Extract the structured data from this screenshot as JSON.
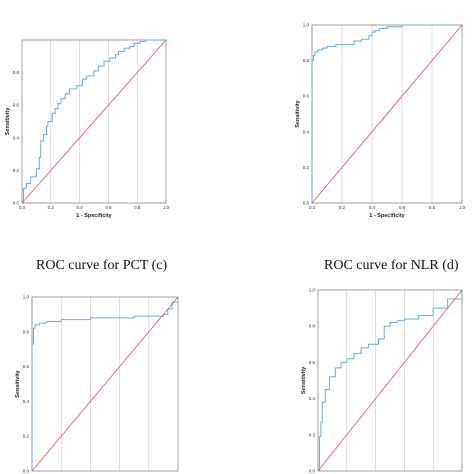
{
  "captions": {
    "c": "ROC curve for PCT (c)",
    "d": "ROC curve for NLR (d)"
  },
  "colors": {
    "roc_line": "#6fa8dc",
    "reference_line": "#e0606e",
    "frame": "#888888",
    "grid": "#c8c8c8"
  },
  "chart_data": [
    {
      "type": "line",
      "panel": "top-left",
      "xlabel": "1 - Specificity",
      "ylabel": "Sensitivity",
      "xlim": [
        0,
        1
      ],
      "ylim": [
        0,
        1
      ],
      "x_ticks": [
        "0.0",
        "0.2",
        "0.4",
        "0.6",
        "0.8",
        "1.0"
      ],
      "y_ticks": [
        "0.0",
        "0.2",
        "0.4",
        "0.6",
        "0.8"
      ],
      "grid": true,
      "series": [
        {
          "role": "roc",
          "x": [
            0.0,
            0.01,
            0.03,
            0.06,
            0.1,
            0.12,
            0.13,
            0.15,
            0.17,
            0.18,
            0.21,
            0.23,
            0.25,
            0.27,
            0.3,
            0.33,
            0.38,
            0.42,
            0.45,
            0.5,
            0.53,
            0.57,
            0.61,
            0.65,
            0.67,
            0.71,
            0.75,
            0.78,
            0.82,
            0.86,
            0.9,
            1.0
          ],
          "y": [
            0.0,
            0.09,
            0.12,
            0.16,
            0.21,
            0.28,
            0.38,
            0.42,
            0.47,
            0.5,
            0.55,
            0.58,
            0.61,
            0.64,
            0.67,
            0.7,
            0.72,
            0.76,
            0.78,
            0.81,
            0.84,
            0.87,
            0.89,
            0.91,
            0.93,
            0.95,
            0.96,
            0.98,
            0.99,
            1.0,
            1.0,
            1.0
          ]
        },
        {
          "role": "reference",
          "x": [
            0,
            1
          ],
          "y": [
            0,
            1
          ]
        }
      ]
    },
    {
      "type": "line",
      "panel": "top-right",
      "xlabel": "1 - Specificity",
      "ylabel": "Sensitivity",
      "xlim": [
        0,
        1
      ],
      "ylim": [
        0,
        1
      ],
      "x_ticks": [
        "0.0",
        "0.2",
        "0.4",
        "0.6",
        "0.8",
        "1.0"
      ],
      "y_ticks": [
        "0.0",
        "0.2",
        "0.4",
        "0.6",
        "0.8",
        "1.0"
      ],
      "grid": true,
      "series": [
        {
          "role": "roc",
          "x": [
            0.0,
            0.0,
            0.01,
            0.02,
            0.04,
            0.07,
            0.1,
            0.13,
            0.16,
            0.22,
            0.28,
            0.33,
            0.38,
            0.4,
            0.42,
            0.45,
            0.5,
            0.6,
            0.75,
            0.9,
            1.0
          ],
          "y": [
            0.0,
            0.8,
            0.83,
            0.85,
            0.86,
            0.87,
            0.88,
            0.88,
            0.89,
            0.89,
            0.91,
            0.92,
            0.94,
            0.96,
            0.97,
            0.98,
            0.99,
            1.0,
            1.0,
            1.0,
            1.0
          ]
        },
        {
          "role": "reference",
          "x": [
            0,
            1
          ],
          "y": [
            0,
            1
          ]
        }
      ]
    },
    {
      "type": "line",
      "panel": "bottom-left",
      "xlabel": "",
      "ylabel": "Sensitivity",
      "xlim": [
        0,
        1
      ],
      "ylim": [
        0,
        1
      ],
      "x_ticks": [],
      "y_ticks": [
        "0.0",
        "0.2",
        "0.4",
        "0.6",
        "0.8",
        "1.0"
      ],
      "grid": true,
      "series": [
        {
          "role": "roc",
          "x": [
            0.0,
            0.0,
            0.01,
            0.02,
            0.05,
            0.1,
            0.2,
            0.3,
            0.4,
            0.5,
            0.6,
            0.7,
            0.75,
            0.8,
            0.85,
            0.9,
            0.93,
            0.96,
            1.0
          ],
          "y": [
            0.0,
            0.73,
            0.82,
            0.84,
            0.85,
            0.86,
            0.87,
            0.87,
            0.88,
            0.88,
            0.88,
            0.89,
            0.89,
            0.89,
            0.89,
            0.9,
            0.93,
            0.97,
            1.0
          ]
        },
        {
          "role": "reference",
          "x": [
            0,
            1
          ],
          "y": [
            0,
            1
          ]
        }
      ]
    },
    {
      "type": "line",
      "panel": "bottom-right",
      "xlabel": "",
      "ylabel": "Sensitivity",
      "xlim": [
        0,
        1
      ],
      "ylim": [
        0,
        1
      ],
      "x_ticks": [],
      "y_ticks": [
        "0.0",
        "0.2",
        "0.4",
        "0.6",
        "0.8",
        "1.0"
      ],
      "grid": true,
      "series": [
        {
          "role": "roc",
          "x": [
            0.0,
            0.01,
            0.02,
            0.03,
            0.05,
            0.08,
            0.12,
            0.16,
            0.2,
            0.25,
            0.3,
            0.35,
            0.42,
            0.46,
            0.5,
            0.55,
            0.6,
            0.7,
            0.8,
            0.9,
            1.0
          ],
          "y": [
            0.0,
            0.19,
            0.27,
            0.38,
            0.45,
            0.52,
            0.57,
            0.6,
            0.62,
            0.65,
            0.68,
            0.7,
            0.73,
            0.8,
            0.82,
            0.83,
            0.84,
            0.86,
            0.9,
            0.95,
            1.0
          ]
        },
        {
          "role": "reference",
          "x": [
            0,
            1
          ],
          "y": [
            0,
            1
          ]
        }
      ]
    }
  ]
}
